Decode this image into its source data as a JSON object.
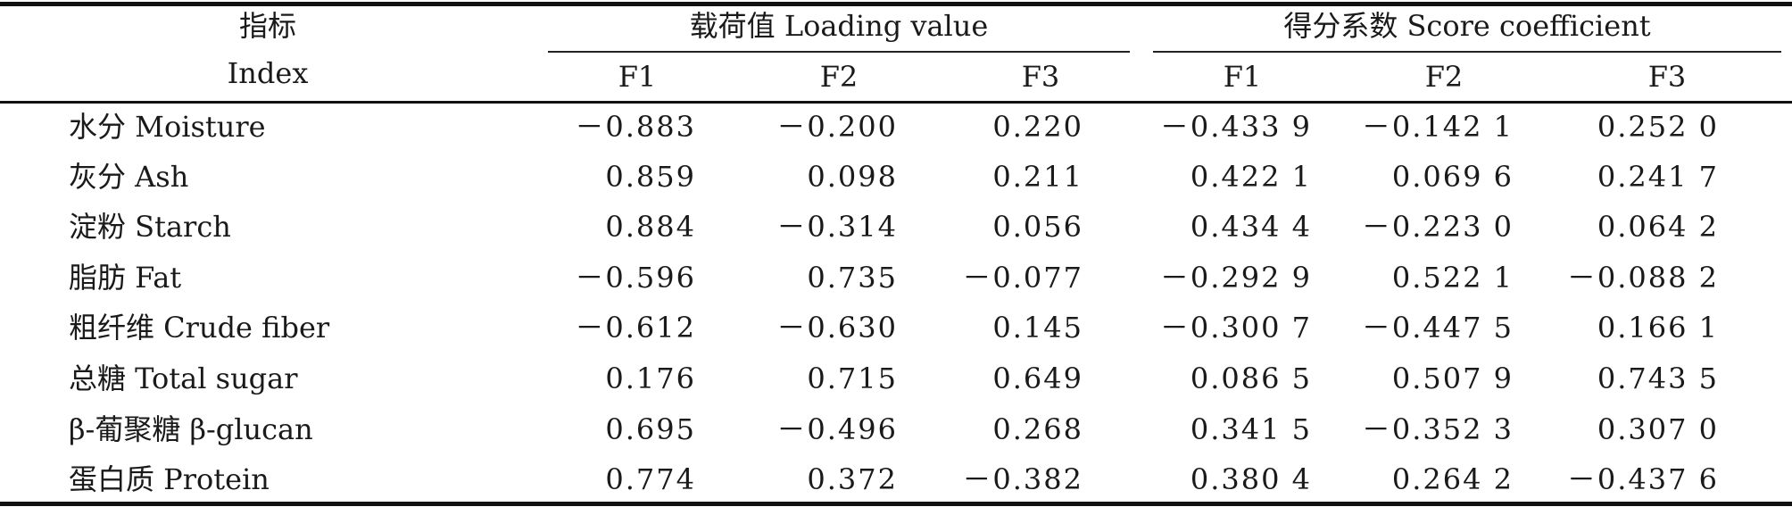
{
  "table": {
    "header": {
      "index_zh": "指标",
      "index_en": "Index",
      "group_loading": "载荷值 Loading value",
      "group_score": "得分系数 Score coefficient",
      "columns": [
        "F1",
        "F2",
        "F3",
        "F1",
        "F2",
        "F3"
      ]
    },
    "rows": [
      {
        "label": "水分 Moisture",
        "values": [
          "－0.883",
          "－0.200",
          "0.220",
          "－0.433 9",
          "－0.142 1",
          "0.252 0"
        ]
      },
      {
        "label": "灰分 Ash",
        "values": [
          "0.859",
          "0.098",
          "0.211",
          "0.422 1",
          "0.069 6",
          "0.241 7"
        ]
      },
      {
        "label": "淀粉 Starch",
        "values": [
          "0.884",
          "－0.314",
          "0.056",
          "0.434 4",
          "－0.223 0",
          "0.064 2"
        ]
      },
      {
        "label": "脂肪 Fat",
        "values": [
          "－0.596",
          "0.735",
          "－0.077",
          "－0.292 9",
          "0.522 1",
          "－0.088 2"
        ]
      },
      {
        "label": "粗纤维 Crude fiber",
        "values": [
          "－0.612",
          "－0.630",
          "0.145",
          "－0.300 7",
          "－0.447 5",
          "0.166 1"
        ]
      },
      {
        "label": "总糖 Total sugar",
        "values": [
          "0.176",
          "0.715",
          "0.649",
          "0.086 5",
          "0.507 9",
          "0.743 5"
        ]
      },
      {
        "label": "β-葡聚糖 β-glucan",
        "values": [
          "0.695",
          "－0.496",
          "0.268",
          "0.341 5",
          "－0.352 3",
          "0.307 0"
        ]
      },
      {
        "label": "蛋白质 Protein",
        "values": [
          "0.774",
          "0.372",
          "－0.382",
          "0.380 4",
          "0.264 2",
          "－0.437 6"
        ]
      }
    ]
  }
}
